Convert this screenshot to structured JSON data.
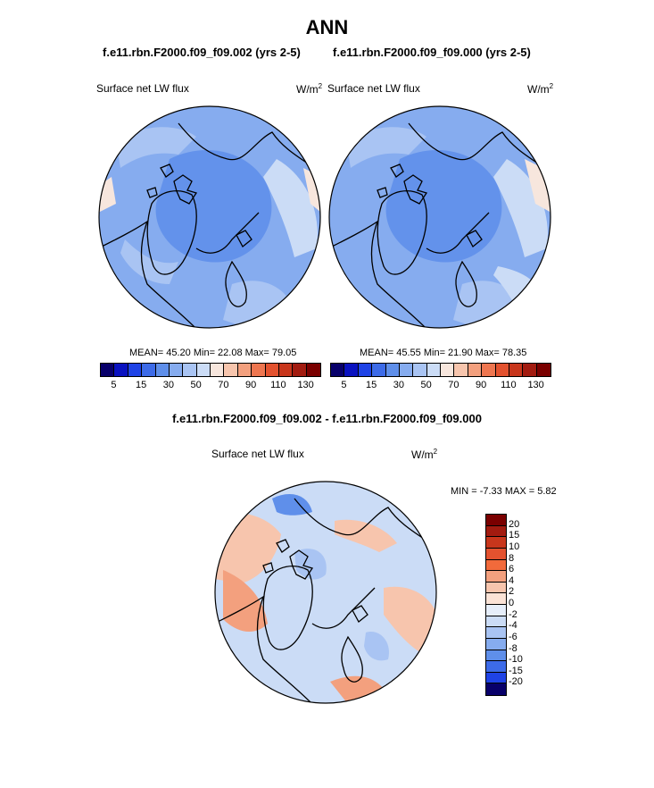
{
  "title": "ANN",
  "panels": [
    {
      "case": "f.e11.rbn.F2000.f09_f09.002 (yrs 2-5)",
      "field": "Surface net LW flux",
      "units": "W/m",
      "units_sup": "2",
      "stats": "MEAN=  45.20  Min=  22.08  Max=  79.05"
    },
    {
      "case": "f.e11.rbn.F2000.f09_f09.000 (yrs 2-5)",
      "field": "Surface net LW flux",
      "units": "W/m",
      "units_sup": "2",
      "stats": "MEAN=  45.55  Min=  21.90  Max=  78.35"
    }
  ],
  "diff": {
    "title": "f.e11.rbn.F2000.f09_f09.002 - f.e11.rbn.F2000.f09_f09.000",
    "field": "Surface net LW flux",
    "units": "W/m",
    "units_sup": "2",
    "minmax": "MIN =  -7.33 MAX =   5.82"
  },
  "colorbar_main": {
    "colors": [
      "#08006a",
      "#0a12c0",
      "#1f43e6",
      "#3d6be8",
      "#5f8fea",
      "#86acef",
      "#a9c4f3",
      "#cbdcf6",
      "#f7e6dd",
      "#f7c5ad",
      "#f3a07e",
      "#ee7650",
      "#e3522f",
      "#c8361c",
      "#a21b10",
      "#7a0000"
    ],
    "ticks": [
      "5",
      "15",
      "30",
      "50",
      "70",
      "90",
      "110",
      "130"
    ]
  },
  "colorbar_diff": {
    "colors": [
      "#7a0000",
      "#a21b10",
      "#c8361c",
      "#e3522f",
      "#f26a3b",
      "#f3a07e",
      "#f7c5ad",
      "#fbe3d6",
      "#e6eefa",
      "#cbdcf6",
      "#a9c4f3",
      "#86acef",
      "#5f8fea",
      "#3d6be8",
      "#1f43e6",
      "#08006a"
    ],
    "ticks": [
      "20",
      "15",
      "10",
      "8",
      "6",
      "4",
      "2",
      "0",
      "-2",
      "-4",
      "-6",
      "-8",
      "-10",
      "-15",
      "-20"
    ]
  },
  "map_colors": {
    "main_base": "#86acef",
    "main_mid": "#a9c4f3",
    "main_light": "#cbdcf6",
    "main_dark": "#5f8fea",
    "main_warm": "#f7e6dd",
    "diff_base": "#cbdcf6",
    "diff_warm": "#f7c5ad",
    "diff_warm2": "#f3a07e",
    "diff_cool": "#a9c4f3",
    "diff_cool2": "#5f8fea"
  }
}
